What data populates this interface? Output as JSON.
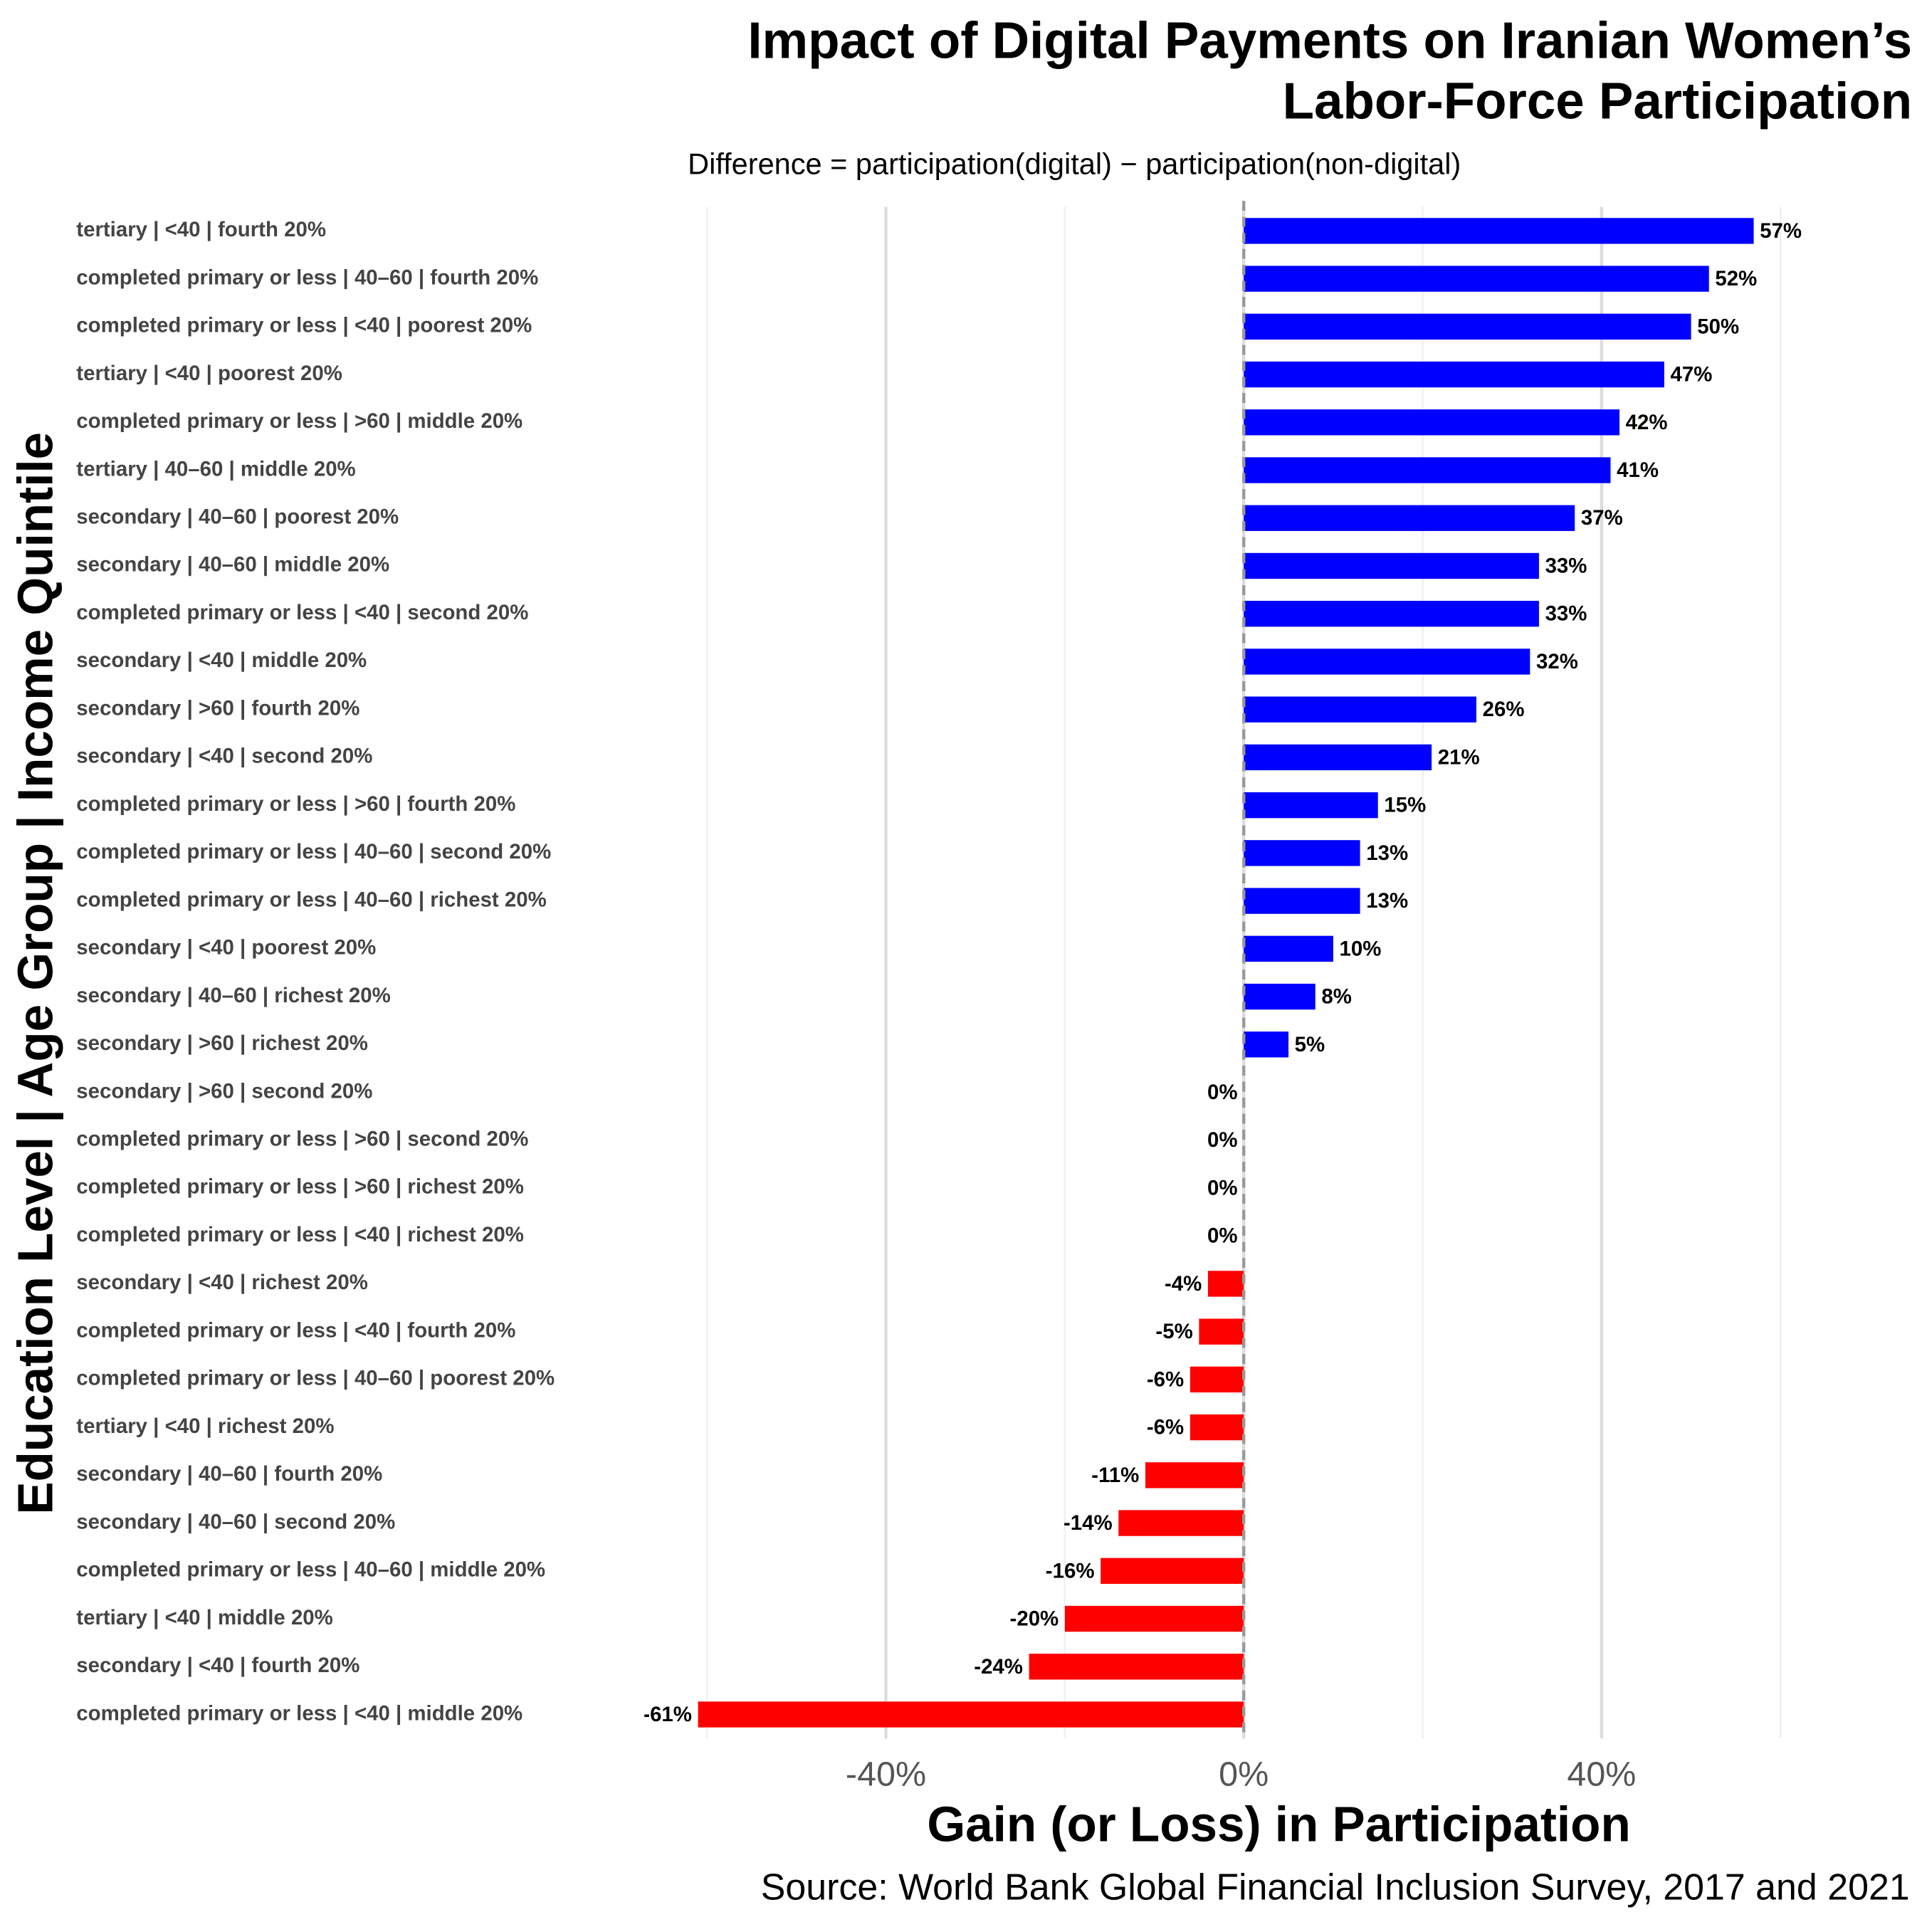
{
  "chart_data": {
    "type": "hbar",
    "title": [
      "Impact of Digital Payments on Iranian Women’s",
      "Labor-Force Participation"
    ],
    "subtitle": "Difference = participation(digital) − participation(non-digital)",
    "x_label": "Gain (or Loss) in Participation",
    "y_label": "Education Level | Age Group | Income Quintile",
    "caption": "Source: World Bank Global Financial Inclusion Survey, 2017 and 2021",
    "categories": [
      "tertiary | <40 | fourth 20%",
      "completed primary or less | 40–60 | fourth 20%",
      "completed primary or less | <40 | poorest 20%",
      "tertiary | <40 | poorest 20%",
      "completed primary or less | >60 | middle 20%",
      "tertiary | 40–60 | middle 20%",
      "secondary | 40–60 | poorest 20%",
      "secondary | 40–60 | middle 20%",
      "completed primary or less | <40 | second 20%",
      "secondary | <40 | middle 20%",
      "secondary | >60 | fourth 20%",
      "secondary | <40 | second 20%",
      "completed primary or less | >60 | fourth 20%",
      "completed primary or less | 40–60 | second 20%",
      "completed primary or less | 40–60 | richest 20%",
      "secondary | <40 | poorest 20%",
      "secondary | 40–60 | richest 20%",
      "secondary | >60 | richest 20%",
      "secondary | >60 | second 20%",
      "completed primary or less | >60 | second 20%",
      "completed primary or less | >60 | richest 20%",
      "completed primary or less | <40 | richest 20%",
      "secondary | <40 | richest 20%",
      "completed primary or less | <40 | fourth 20%",
      "completed primary or less | 40–60 | poorest 20%",
      "tertiary | <40 | richest 20%",
      "secondary | 40–60 | fourth 20%",
      "secondary | 40–60 | second 20%",
      "completed primary or less | 40–60 | middle 20%",
      "tertiary | <40 | middle 20%",
      "secondary | <40 | fourth 20%",
      "completed primary or less | <40 | middle 20%"
    ],
    "values": [
      57,
      52,
      50,
      47,
      42,
      41,
      37,
      33,
      33,
      32,
      26,
      21,
      15,
      13,
      13,
      10,
      8,
      5,
      0,
      0,
      0,
      0,
      -4,
      -5,
      -6,
      -6,
      -11,
      -14,
      -16,
      -20,
      -24,
      -61
    ],
    "value_labels": [
      "57%",
      "52%",
      "50%",
      "47%",
      "42%",
      "41%",
      "37%",
      "33%",
      "33%",
      "32%",
      "26%",
      "21%",
      "15%",
      "13%",
      "13%",
      "10%",
      "8%",
      "5%",
      "0%",
      "0%",
      "0%",
      "0%",
      "-4%",
      "-5%",
      "-6%",
      "-6%",
      "-11%",
      "-14%",
      "-16%",
      "-20%",
      "-24%",
      "-61%"
    ],
    "color_positive": "#0000ff",
    "color_negative": "#ff0000",
    "xlim": [
      -67,
      67
    ],
    "xticks": [
      {
        "value": -40,
        "label": "-40%"
      },
      {
        "value": 0,
        "label": "0%"
      },
      {
        "value": 40,
        "label": "40%"
      }
    ],
    "minor_xticks": [
      -60,
      -20,
      20,
      60
    ],
    "grid": true
  }
}
